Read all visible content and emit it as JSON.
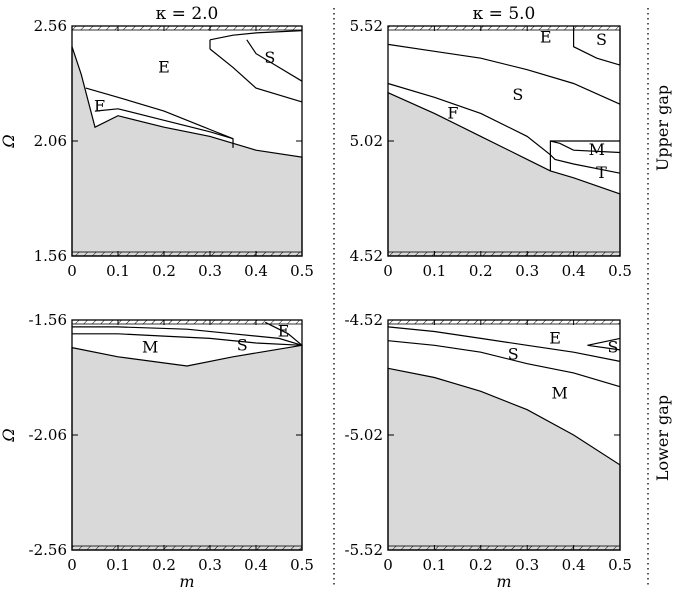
{
  "chart_data": [
    {
      "type": "area",
      "panel": "upper-left",
      "title": "κ = 2.0",
      "xlabel": "",
      "ylabel": "Ω",
      "xlim": [
        0,
        0.5
      ],
      "ylim": [
        1.56,
        2.56
      ],
      "xticks": [
        "0",
        "0.1",
        "0.2",
        "0.3",
        "0.4",
        "0.5"
      ],
      "yticks": [
        "1.56",
        "2.06",
        "2.56"
      ],
      "shaded_lower_edge": [
        [
          0,
          2.47
        ],
        [
          0.02,
          2.35
        ],
        [
          0.05,
          2.12
        ],
        [
          0.1,
          2.17
        ],
        [
          0.2,
          2.12
        ],
        [
          0.3,
          2.08
        ],
        [
          0.4,
          2.02
        ],
        [
          0.5,
          1.99
        ]
      ],
      "boundaries": [
        [
          [
            0.03,
            2.29
          ],
          [
            0.1,
            2.25
          ],
          [
            0.2,
            2.19
          ],
          [
            0.3,
            2.11
          ],
          [
            0.35,
            2.07
          ],
          [
            0.35,
            2.03
          ]
        ],
        [
          [
            0.05,
            2.19
          ],
          [
            0.1,
            2.2
          ],
          [
            0.2,
            2.15
          ],
          [
            0.3,
            2.1
          ],
          [
            0.35,
            2.07
          ]
        ],
        [
          [
            0.3,
            2.46
          ],
          [
            0.35,
            2.38
          ],
          [
            0.4,
            2.29
          ],
          [
            0.5,
            2.23
          ]
        ],
        [
          [
            0.3,
            2.5
          ],
          [
            0.35,
            2.52
          ],
          [
            0.4,
            2.53
          ],
          [
            0.5,
            2.54
          ]
        ],
        [
          [
            0.3,
            2.46
          ],
          [
            0.3,
            2.5
          ]
        ],
        [
          [
            0.5,
            2.32
          ],
          [
            0.45,
            2.38
          ],
          [
            0.4,
            2.44
          ],
          [
            0.38,
            2.5
          ]
        ]
      ],
      "regions": [
        {
          "label": "E",
          "x": 0.2,
          "y": 2.38
        },
        {
          "label": "F",
          "x": 0.06,
          "y": 2.21
        },
        {
          "label": "S",
          "x": 0.43,
          "y": 2.42
        }
      ]
    },
    {
      "type": "area",
      "panel": "upper-right",
      "title": "κ = 5.0",
      "xlabel": "",
      "ylabel": "",
      "xlim": [
        0,
        0.5
      ],
      "ylim": [
        4.52,
        5.52
      ],
      "xticks": [
        "0",
        "0.1",
        "0.2",
        "0.3",
        "0.4",
        "0.5"
      ],
      "yticks": [
        "4.52",
        "5.02",
        "5.52"
      ],
      "shaded_lower_edge": [
        [
          0,
          5.23
        ],
        [
          0.1,
          5.14
        ],
        [
          0.2,
          5.04
        ],
        [
          0.3,
          4.94
        ],
        [
          0.35,
          4.89
        ],
        [
          0.4,
          4.86
        ],
        [
          0.5,
          4.79
        ]
      ],
      "boundaries": [
        [
          [
            0,
            5.27
          ],
          [
            0.1,
            5.21
          ],
          [
            0.2,
            5.14
          ],
          [
            0.3,
            5.04
          ],
          [
            0.35,
            4.96
          ],
          [
            0.36,
            4.94
          ],
          [
            0.4,
            4.92
          ],
          [
            0.5,
            4.88
          ]
        ],
        [
          [
            0,
            5.44
          ],
          [
            0.1,
            5.41
          ],
          [
            0.2,
            5.38
          ],
          [
            0.3,
            5.33
          ],
          [
            0.4,
            5.27
          ],
          [
            0.5,
            5.18
          ]
        ],
        [
          [
            0.35,
            4.89
          ],
          [
            0.35,
            5.02
          ],
          [
            0.37,
            5.01
          ],
          [
            0.4,
            4.98
          ],
          [
            0.5,
            4.97
          ]
        ],
        [
          [
            0.35,
            5.02
          ],
          [
            0.5,
            5.02
          ]
        ],
        [
          [
            0.4,
            5.51
          ],
          [
            0.4,
            5.43
          ],
          [
            0.45,
            5.38
          ],
          [
            0.5,
            5.35
          ]
        ],
        [
          [
            0.5,
            5.35
          ],
          [
            0.5,
            5.51
          ]
        ]
      ],
      "regions": [
        {
          "label": "E",
          "x": 0.34,
          "y": 5.47
        },
        {
          "label": "S",
          "x": 0.46,
          "y": 5.46
        },
        {
          "label": "S",
          "x": 0.28,
          "y": 5.22
        },
        {
          "label": "F",
          "x": 0.14,
          "y": 5.14
        },
        {
          "label": "M",
          "x": 0.45,
          "y": 4.98
        },
        {
          "label": "T",
          "x": 0.46,
          "y": 4.88
        }
      ]
    },
    {
      "type": "area",
      "panel": "lower-left",
      "title": "",
      "xlabel": "m",
      "ylabel": "Ω",
      "xlim": [
        0,
        0.5
      ],
      "ylim": [
        -2.56,
        -1.56
      ],
      "xticks": [
        "0",
        "0.1",
        "0.2",
        "0.3",
        "0.4",
        "0.5"
      ],
      "yticks": [
        "-2.56",
        "-2.06",
        "-1.56"
      ],
      "shaded_lower_edge": [
        [
          0,
          -1.68
        ],
        [
          0.1,
          -1.72
        ],
        [
          0.25,
          -1.76
        ],
        [
          0.35,
          -1.72
        ],
        [
          0.5,
          -1.67
        ]
      ],
      "boundaries": [
        [
          [
            0,
            -1.62
          ],
          [
            0.1,
            -1.62
          ],
          [
            0.2,
            -1.63
          ],
          [
            0.3,
            -1.64
          ],
          [
            0.4,
            -1.66
          ],
          [
            0.5,
            -1.67
          ]
        ],
        [
          [
            0,
            -1.59
          ],
          [
            0.1,
            -1.59
          ],
          [
            0.25,
            -1.6
          ],
          [
            0.35,
            -1.62
          ],
          [
            0.45,
            -1.64
          ],
          [
            0.5,
            -1.67
          ]
        ],
        [
          [
            0.42,
            -1.57
          ],
          [
            0.47,
            -1.62
          ],
          [
            0.5,
            -1.67
          ]
        ]
      ],
      "regions": [
        {
          "label": "M",
          "x": 0.17,
          "y": -1.68
        },
        {
          "label": "S",
          "x": 0.37,
          "y": -1.67
        },
        {
          "label": "E",
          "x": 0.46,
          "y": -1.61
        }
      ]
    },
    {
      "type": "area",
      "panel": "lower-right",
      "title": "",
      "xlabel": "m",
      "ylabel": "",
      "xlim": [
        0,
        0.5
      ],
      "ylim": [
        -5.52,
        -4.52
      ],
      "xticks": [
        "0",
        "0.1",
        "0.2",
        "0.3",
        "0.4",
        "0.5"
      ],
      "yticks": [
        "-5.52",
        "-5.02",
        "-4.52"
      ],
      "shaded_lower_edge": [
        [
          0,
          -4.73
        ],
        [
          0.1,
          -4.77
        ],
        [
          0.2,
          -4.83
        ],
        [
          0.3,
          -4.91
        ],
        [
          0.4,
          -5.02
        ],
        [
          0.5,
          -5.15
        ]
      ],
      "boundaries": [
        [
          [
            0,
            -4.61
          ],
          [
            0.1,
            -4.63
          ],
          [
            0.2,
            -4.66
          ],
          [
            0.3,
            -4.71
          ],
          [
            0.4,
            -4.75
          ],
          [
            0.5,
            -4.81
          ]
        ],
        [
          [
            0,
            -4.55
          ],
          [
            0.1,
            -4.57
          ],
          [
            0.2,
            -4.6
          ],
          [
            0.3,
            -4.63
          ],
          [
            0.4,
            -4.66
          ],
          [
            0.5,
            -4.7
          ]
        ],
        [
          [
            0.43,
            -4.63
          ],
          [
            0.5,
            -4.6
          ]
        ],
        [
          [
            0.43,
            -4.63
          ],
          [
            0.5,
            -4.65
          ]
        ]
      ],
      "regions": [
        {
          "label": "E",
          "x": 0.36,
          "y": -4.6
        },
        {
          "label": "S",
          "x": 0.27,
          "y": -4.67
        },
        {
          "label": "S",
          "x": 0.485,
          "y": -4.64
        },
        {
          "label": "M",
          "x": 0.37,
          "y": -4.84
        }
      ]
    }
  ],
  "labels": {
    "upper_gap": "Upper gap",
    "lower_gap": "Lower gap"
  },
  "colors": {
    "shade": "#d9d9d9",
    "line": "#000000"
  }
}
